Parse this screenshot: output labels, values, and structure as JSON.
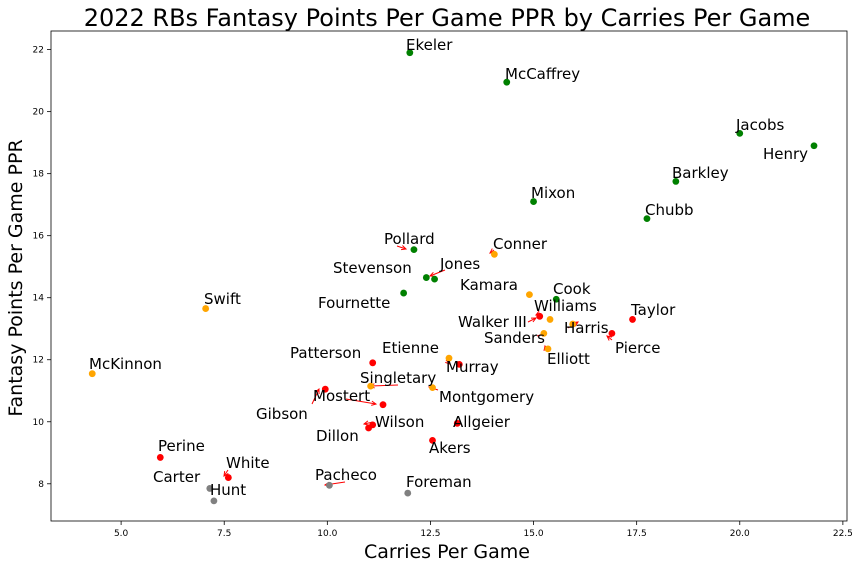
{
  "chart_data": {
    "type": "scatter",
    "title": "2022 RBs Fantasy Points Per Game PPR by Carries Per Game",
    "xlabel": "Carries Per Game",
    "ylabel": "Fantasy Points Per Game PPR",
    "xlim": [
      3.3,
      22.6
    ],
    "ylim": [
      6.8,
      22.6
    ],
    "xticks": [
      "5.0",
      "7.5",
      "10.0",
      "12.5",
      "15.0",
      "17.5",
      "20.0",
      "22.5"
    ],
    "yticks": [
      "8",
      "10",
      "12",
      "14",
      "16",
      "18",
      "20",
      "22"
    ],
    "grid": false,
    "colors": {
      "green": "#008000",
      "orange": "#ffa500",
      "red": "#ff0000",
      "gray": "#808080",
      "arrow": "#ff0000"
    },
    "points": [
      {
        "name": "Ekeler",
        "x": 12.0,
        "y": 21.9,
        "color": "green"
      },
      {
        "name": "McCaffrey",
        "x": 14.35,
        "y": 20.95,
        "color": "green"
      },
      {
        "name": "Jacobs",
        "x": 20.0,
        "y": 19.3,
        "color": "green"
      },
      {
        "name": "Henry",
        "x": 21.8,
        "y": 18.9,
        "color": "green"
      },
      {
        "name": "Barkley",
        "x": 18.45,
        "y": 17.75,
        "color": "green"
      },
      {
        "name": "Mixon",
        "x": 15.0,
        "y": 17.1,
        "color": "green"
      },
      {
        "name": "Chubb",
        "x": 17.75,
        "y": 16.55,
        "color": "green"
      },
      {
        "name": "Pollard",
        "x": 12.1,
        "y": 15.55,
        "color": "green"
      },
      {
        "name": "Conner",
        "x": 14.05,
        "y": 15.4,
        "color": "orange"
      },
      {
        "name": "Stevenson",
        "x": 12.4,
        "y": 14.65,
        "color": "green"
      },
      {
        "name": "Jones",
        "x": 12.6,
        "y": 14.6,
        "color": "green"
      },
      {
        "name": "Kamara",
        "x": 14.9,
        "y": 14.1,
        "color": "orange"
      },
      {
        "name": "Fournette",
        "x": 11.85,
        "y": 14.15,
        "color": "green"
      },
      {
        "name": "Cook",
        "x": 15.55,
        "y": 13.95,
        "color": "green"
      },
      {
        "name": "Swift",
        "x": 7.05,
        "y": 13.65,
        "color": "orange"
      },
      {
        "name": "Williams",
        "x": 15.4,
        "y": 13.3,
        "color": "orange"
      },
      {
        "name": "Walker III",
        "x": 15.15,
        "y": 13.4,
        "color": "red"
      },
      {
        "name": "Taylor",
        "x": 17.4,
        "y": 13.3,
        "color": "red"
      },
      {
        "name": "Harris",
        "x": 15.95,
        "y": 13.15,
        "color": "orange"
      },
      {
        "name": "Sanders",
        "x": 15.25,
        "y": 12.85,
        "color": "orange"
      },
      {
        "name": "Pierce",
        "x": 16.9,
        "y": 12.85,
        "color": "red"
      },
      {
        "name": "Elliott",
        "x": 15.35,
        "y": 12.35,
        "color": "orange"
      },
      {
        "name": "Etienne",
        "x": 12.95,
        "y": 12.05,
        "color": "orange"
      },
      {
        "name": "Patterson",
        "x": 11.1,
        "y": 11.9,
        "color": "red"
      },
      {
        "name": "Murray",
        "x": 13.2,
        "y": 11.85,
        "color": "red"
      },
      {
        "name": "McKinnon",
        "x": 4.3,
        "y": 11.55,
        "color": "orange"
      },
      {
        "name": "Singletary",
        "x": 11.05,
        "y": 11.15,
        "color": "orange"
      },
      {
        "name": "Montgomery",
        "x": 12.55,
        "y": 11.1,
        "color": "orange"
      },
      {
        "name": "Mostert",
        "x": 9.95,
        "y": 11.05,
        "color": "red"
      },
      {
        "name": "Gibson",
        "x": 11.35,
        "y": 10.55,
        "color": "red"
      },
      {
        "name": "Allgeier",
        "x": 13.15,
        "y": 9.95,
        "color": "red"
      },
      {
        "name": "Wilson",
        "x": 11.1,
        "y": 9.9,
        "color": "red"
      },
      {
        "name": "Dillon",
        "x": 11.0,
        "y": 9.8,
        "color": "red"
      },
      {
        "name": "Akers",
        "x": 12.55,
        "y": 9.4,
        "color": "red"
      },
      {
        "name": "Perine",
        "x": 5.95,
        "y": 8.85,
        "color": "red"
      },
      {
        "name": "White",
        "x": 7.6,
        "y": 8.2,
        "color": "red"
      },
      {
        "name": "Carter",
        "x": 7.15,
        "y": 7.85,
        "color": "gray"
      },
      {
        "name": "Hunt",
        "x": 7.25,
        "y": 7.45,
        "color": "gray"
      },
      {
        "name": "Pacheco",
        "x": 10.05,
        "y": 7.95,
        "color": "gray"
      },
      {
        "name": "Foreman",
        "x": 11.95,
        "y": 7.7,
        "color": "gray"
      }
    ]
  }
}
